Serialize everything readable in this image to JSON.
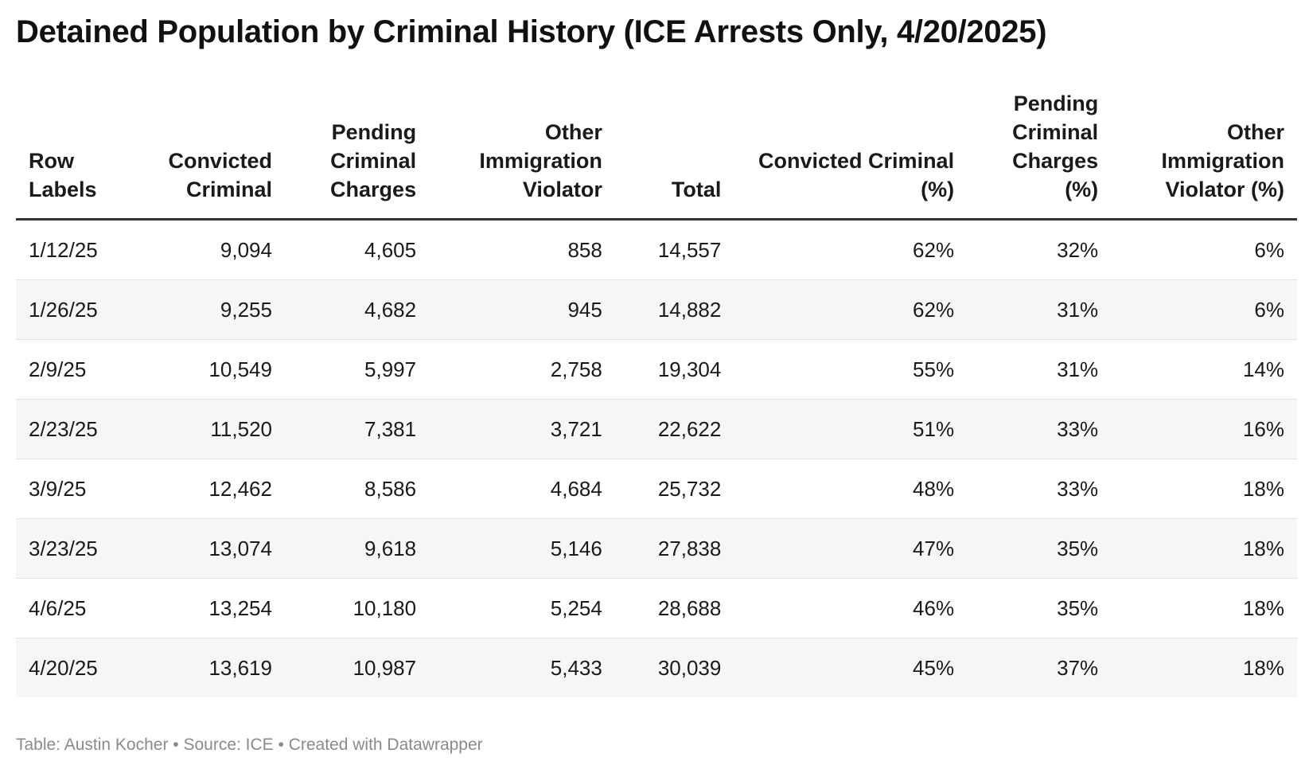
{
  "title": "Detained Population by Criminal History (ICE Arrests Only, 4/20/2025)",
  "table": {
    "headers": [
      "Row Labels",
      "Convicted Criminal",
      "Pending Criminal Charges",
      "Other Immigration Violator",
      "Total",
      "Convicted Criminal (%)",
      "Pending Criminal Charges (%)",
      "Other Immigration Violator (%)"
    ],
    "rows": [
      [
        "1/12/25",
        "9,094",
        "4,605",
        "858",
        "14,557",
        "62%",
        "32%",
        "6%"
      ],
      [
        "1/26/25",
        "9,255",
        "4,682",
        "945",
        "14,882",
        "62%",
        "31%",
        "6%"
      ],
      [
        "2/9/25",
        "10,549",
        "5,997",
        "2,758",
        "19,304",
        "55%",
        "31%",
        "14%"
      ],
      [
        "2/23/25",
        "11,520",
        "7,381",
        "3,721",
        "22,622",
        "51%",
        "33%",
        "16%"
      ],
      [
        "3/9/25",
        "12,462",
        "8,586",
        "4,684",
        "25,732",
        "48%",
        "33%",
        "18%"
      ],
      [
        "3/23/25",
        "13,074",
        "9,618",
        "5,146",
        "27,838",
        "47%",
        "35%",
        "18%"
      ],
      [
        "4/6/25",
        "13,254",
        "10,180",
        "5,254",
        "28,688",
        "46%",
        "35%",
        "18%"
      ],
      [
        "4/20/25",
        "13,619",
        "10,987",
        "5,433",
        "30,039",
        "45%",
        "37%",
        "18%"
      ]
    ]
  },
  "chart_data": {
    "type": "table",
    "title": "Detained Population by Criminal History (ICE Arrests Only, 4/20/2025)",
    "columns": [
      "Row Labels",
      "Convicted Criminal",
      "Pending Criminal Charges",
      "Other Immigration Violator",
      "Total",
      "Convicted Criminal (%)",
      "Pending Criminal Charges (%)",
      "Other Immigration Violator (%)"
    ],
    "categories": [
      "1/12/25",
      "1/26/25",
      "2/9/25",
      "2/23/25",
      "3/9/25",
      "3/23/25",
      "4/6/25",
      "4/20/25"
    ],
    "series": [
      {
        "name": "Convicted Criminal",
        "values": [
          9094,
          9255,
          10549,
          11520,
          12462,
          13074,
          13254,
          13619
        ]
      },
      {
        "name": "Pending Criminal Charges",
        "values": [
          4605,
          4682,
          5997,
          7381,
          8586,
          9618,
          10180,
          10987
        ]
      },
      {
        "name": "Other Immigration Violator",
        "values": [
          858,
          945,
          2758,
          3721,
          4684,
          5146,
          5254,
          5433
        ]
      },
      {
        "name": "Total",
        "values": [
          14557,
          14882,
          19304,
          22622,
          25732,
          27838,
          28688,
          30039
        ]
      },
      {
        "name": "Convicted Criminal (%)",
        "values": [
          62,
          62,
          55,
          51,
          48,
          47,
          46,
          45
        ]
      },
      {
        "name": "Pending Criminal Charges (%)",
        "values": [
          32,
          31,
          31,
          33,
          33,
          35,
          35,
          37
        ]
      },
      {
        "name": "Other Immigration Violator (%)",
        "values": [
          6,
          6,
          14,
          16,
          18,
          18,
          18,
          18
        ]
      }
    ]
  },
  "footer": "Table: Austin Kocher • Source: ICE • Created with Datawrapper"
}
